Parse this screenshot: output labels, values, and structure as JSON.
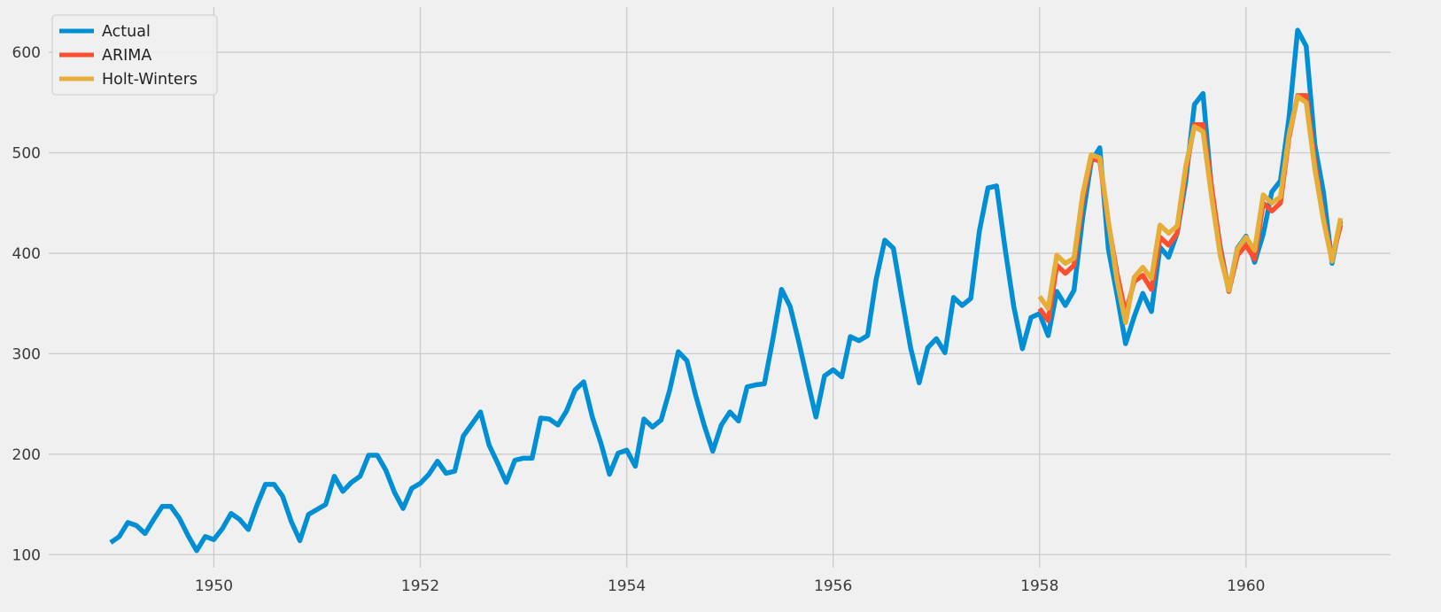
{
  "chart_data": {
    "type": "line",
    "title": "",
    "xlabel": "",
    "ylabel": "",
    "xlim": [
      1948.4,
      1961.4
    ],
    "ylim": [
      87,
      645
    ],
    "xticks": [
      1950,
      1952,
      1954,
      1956,
      1958,
      1960
    ],
    "yticks": [
      100,
      200,
      300,
      400,
      500,
      600
    ],
    "grid": true,
    "legend_position": "top-left",
    "colors": {
      "background": "#f0f0f0",
      "grid": "#cbcbcb",
      "Actual": "#008fd5",
      "ARIMA": "#fc4f30",
      "Holt-Winters": "#e5ae38"
    },
    "series": [
      {
        "name": "Actual",
        "x_start": 1949.0,
        "x_step": 0.08333333,
        "values": [
          112,
          118,
          132,
          129,
          121,
          135,
          148,
          148,
          136,
          119,
          104,
          118,
          115,
          126,
          141,
          135,
          125,
          149,
          170,
          170,
          158,
          133,
          114,
          140,
          145,
          150,
          178,
          163,
          172,
          178,
          199,
          199,
          184,
          162,
          146,
          166,
          171,
          180,
          193,
          181,
          183,
          218,
          230,
          242,
          209,
          191,
          172,
          194,
          196,
          196,
          236,
          235,
          229,
          243,
          264,
          272,
          237,
          211,
          180,
          201,
          204,
          188,
          235,
          227,
          234,
          264,
          302,
          293,
          259,
          229,
          203,
          229,
          242,
          233,
          267,
          269,
          270,
          315,
          364,
          347,
          312,
          274,
          237,
          278,
          284,
          277,
          317,
          313,
          318,
          374,
          413,
          405,
          355,
          306,
          271,
          306,
          315,
          301,
          356,
          348,
          355,
          422,
          465,
          467,
          404,
          347,
          305,
          336,
          340,
          318,
          362,
          348,
          363,
          435,
          491,
          505,
          404,
          359,
          310,
          337,
          360,
          342,
          406,
          396,
          420,
          472,
          548,
          559,
          463,
          407,
          362,
          405,
          417,
          391,
          419,
          461,
          472,
          535,
          622,
          606,
          508,
          461,
          390,
          432
        ]
      },
      {
        "name": "ARIMA",
        "x_start": 1958.0,
        "x_step": 0.08333333,
        "values": [
          345,
          333,
          388,
          380,
          388,
          452,
          494,
          492,
          430,
          380,
          340,
          372,
          378,
          364,
          416,
          408,
          420,
          482,
          528,
          528,
          466,
          405,
          362,
          398,
          408,
          394,
          450,
          442,
          450,
          515,
          557,
          557,
          490,
          436,
          395,
          428
        ]
      },
      {
        "name": "Holt-Winters",
        "x_start": 1958.0,
        "x_step": 0.08333333,
        "values": [
          357,
          345,
          398,
          390,
          395,
          458,
          498,
          495,
          432,
          373,
          331,
          376,
          386,
          375,
          428,
          420,
          427,
          487,
          526,
          521,
          456,
          398,
          363,
          404,
          416,
          403,
          458,
          450,
          456,
          518,
          556,
          550,
          484,
          433,
          392,
          435
        ]
      }
    ]
  }
}
